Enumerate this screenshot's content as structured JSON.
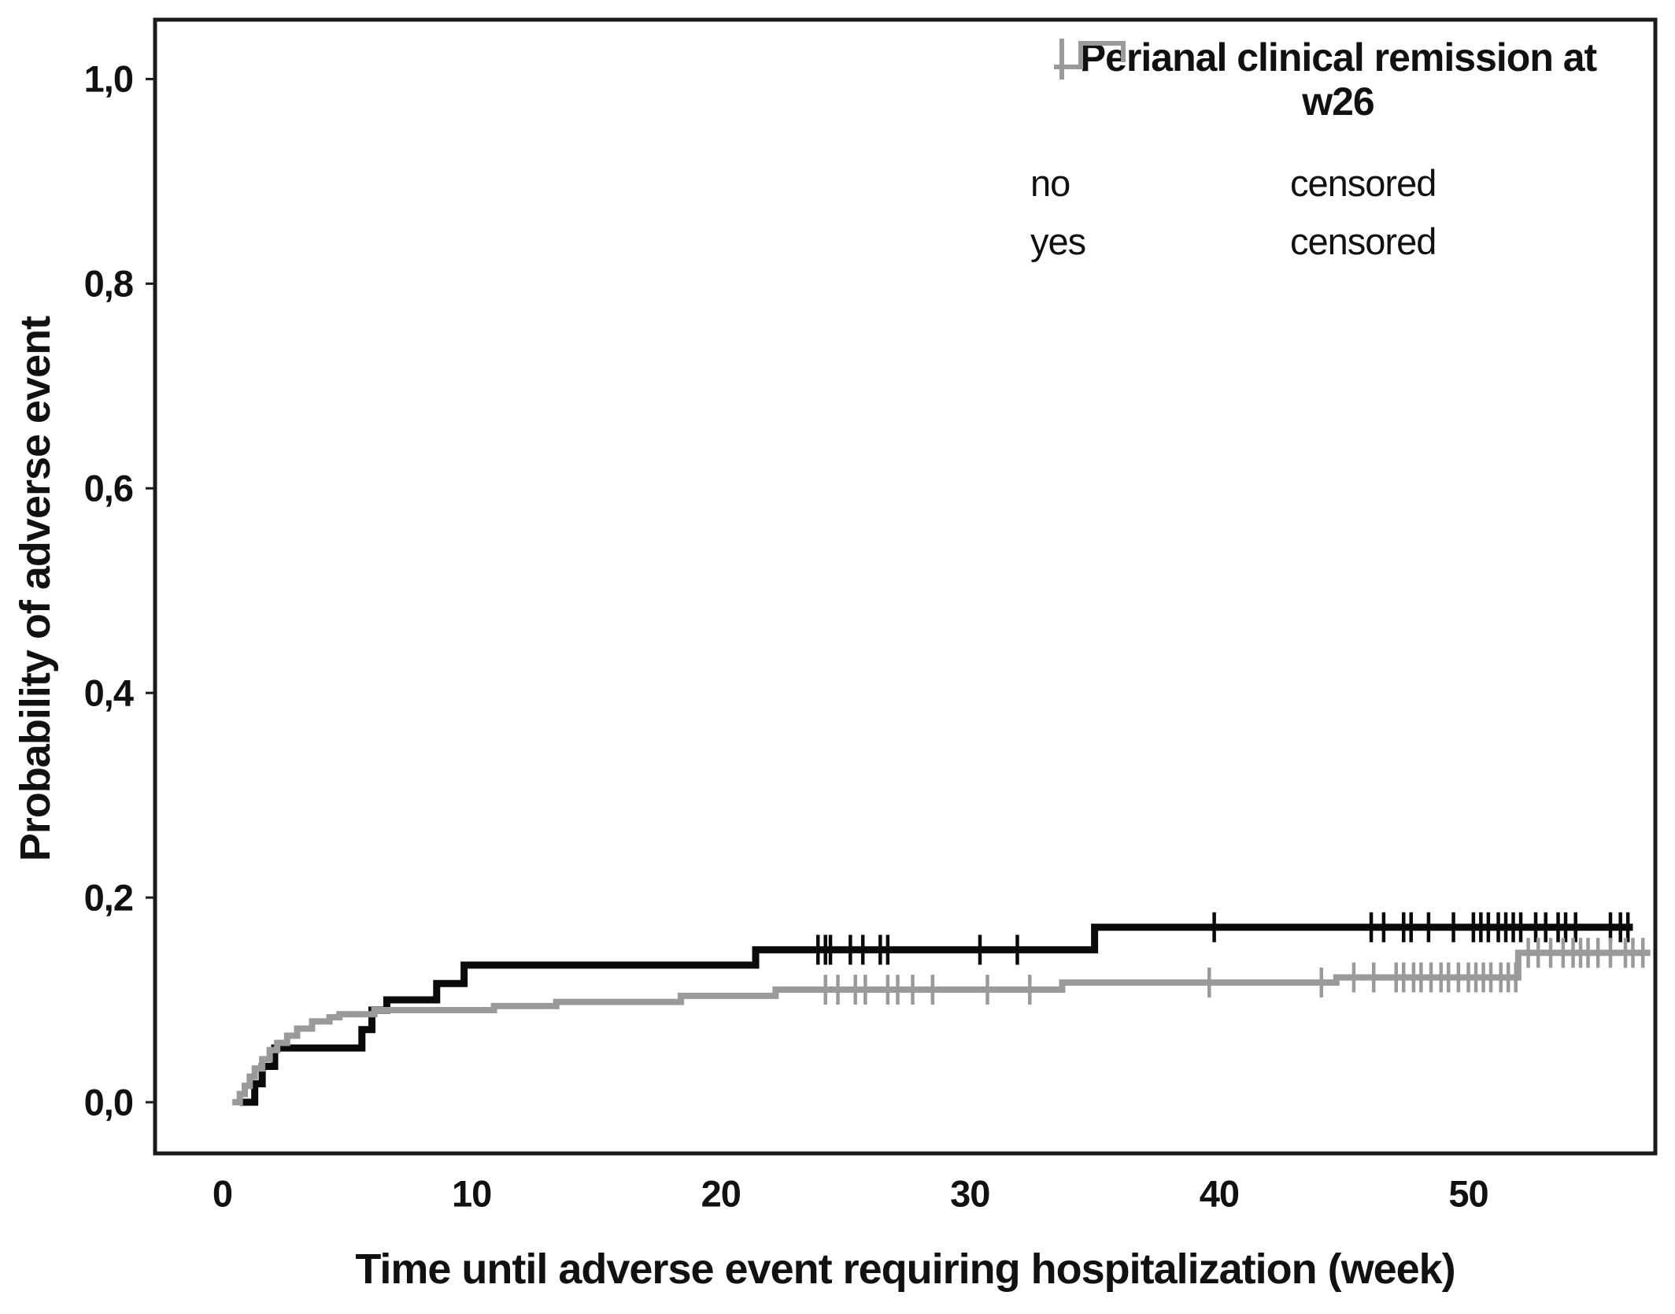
{
  "chart_data": {
    "type": "line",
    "subtype": "kaplan-meier-step-cumulative-incidence",
    "title": "Perianal clinical remission at w26",
    "xlabel": "Time until adverse event requiring hospitalization (week)",
    "ylabel": "Probability of adverse event",
    "xlim": [
      -2.7,
      57.5
    ],
    "ylim": [
      -0.05,
      1.058
    ],
    "grid": false,
    "legend_position": "top-right-inside",
    "x_ticks": [
      {
        "value": 0,
        "label": "0"
      },
      {
        "value": 10,
        "label": "10"
      },
      {
        "value": 20,
        "label": "20"
      },
      {
        "value": 30,
        "label": "30"
      },
      {
        "value": 40,
        "label": "40"
      },
      {
        "value": 50,
        "label": "50"
      }
    ],
    "y_ticks": [
      {
        "value": 0.0,
        "label": "0,0"
      },
      {
        "value": 0.2,
        "label": "0,2"
      },
      {
        "value": 0.4,
        "label": "0,4"
      },
      {
        "value": 0.6,
        "label": "0,6"
      },
      {
        "value": 0.8,
        "label": "0,8"
      },
      {
        "value": 1.0,
        "label": "1,0"
      }
    ],
    "series": [
      {
        "name": "no",
        "color": "#0a0a0a",
        "line_width": 9,
        "steps": [
          [
            0.7,
            0
          ],
          [
            1.3,
            0.018
          ],
          [
            1.6,
            0.035
          ],
          [
            2.1,
            0.053
          ],
          [
            5.6,
            0.071
          ],
          [
            6.0,
            0.09
          ],
          [
            6.6,
            0.1
          ],
          [
            8.6,
            0.116
          ],
          [
            9.7,
            0.134
          ],
          [
            21.4,
            0.149
          ],
          [
            35.0,
            0.171
          ]
        ],
        "end_week": 56.6,
        "censored_weeks": [
          23.9,
          24.2,
          24.4,
          25.2,
          25.7,
          26.4,
          26.7,
          30.4,
          31.9,
          39.8,
          46.1,
          46.6,
          47.4,
          47.7,
          48.4,
          49.4,
          50.2,
          50.5,
          50.8,
          51.2,
          51.5,
          51.8,
          52.1,
          52.7,
          53.1,
          53.6,
          53.9,
          54.3,
          55.7,
          56.1,
          56.4
        ]
      },
      {
        "name": "yes",
        "color": "#9a9a9a",
        "line_width": 8,
        "steps": [
          [
            0.4,
            0
          ],
          [
            0.7,
            0.008
          ],
          [
            0.9,
            0.016
          ],
          [
            1.1,
            0.025
          ],
          [
            1.3,
            0.033
          ],
          [
            1.6,
            0.042
          ],
          [
            1.9,
            0.051
          ],
          [
            2.2,
            0.058
          ],
          [
            2.6,
            0.065
          ],
          [
            3.0,
            0.072
          ],
          [
            3.6,
            0.079
          ],
          [
            4.3,
            0.083
          ],
          [
            4.7,
            0.086
          ],
          [
            6.1,
            0.09
          ],
          [
            10.9,
            0.094
          ],
          [
            13.4,
            0.098
          ],
          [
            18.4,
            0.104
          ],
          [
            22.2,
            0.11
          ],
          [
            33.7,
            0.117
          ],
          [
            44.7,
            0.122
          ],
          [
            52.0,
            0.146
          ]
        ],
        "end_week": 57.3,
        "censored_weeks": [
          24.2,
          24.7,
          25.4,
          25.8,
          26.7,
          27.1,
          27.7,
          28.5,
          30.7,
          32.4,
          39.6,
          44.1,
          45.4,
          46.2,
          47.1,
          47.4,
          47.8,
          48.1,
          48.5,
          48.9,
          49.2,
          49.6,
          50.0,
          50.3,
          50.6,
          50.9,
          51.3,
          51.6,
          51.9,
          52.4,
          52.8,
          53.3,
          53.8,
          54.2,
          54.5,
          54.8,
          55.2,
          55.7,
          56.3,
          56.6,
          57.0
        ]
      }
    ]
  },
  "legend": {
    "title_lines": [
      "Perianal clinical remission at",
      "w26"
    ],
    "items": [
      {
        "label": "no",
        "color": "#0a0a0a",
        "glyph": "step-line-icon",
        "censored_label": "censored"
      },
      {
        "label": "yes",
        "color": "#9a9a9a",
        "glyph": "step-line-icon",
        "censored_label": "censored"
      }
    ]
  },
  "frame": {
    "border_color": "#1a1a1a"
  }
}
